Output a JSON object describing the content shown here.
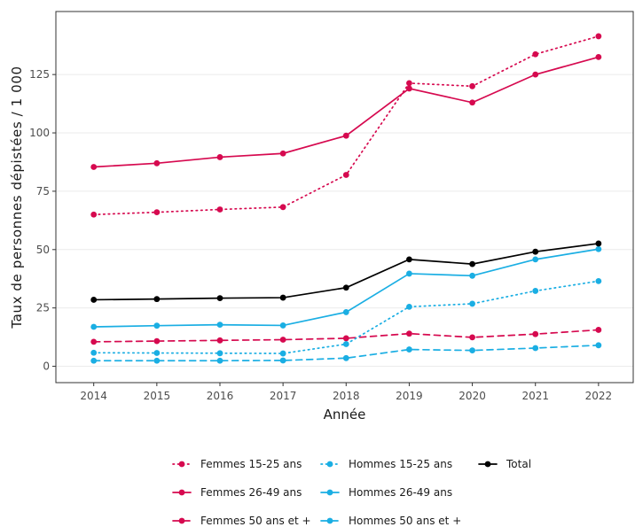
{
  "chart_data": {
    "type": "line",
    "xlabel": "Année",
    "ylabel": "Taux de personnes dépistées / 1 000",
    "x": [
      2014,
      2015,
      2016,
      2017,
      2018,
      2019,
      2020,
      2021,
      2022
    ],
    "xlim": [
      2013.4,
      2022.55
    ],
    "ylim": [
      -7,
      152
    ],
    "yticks": [
      0,
      25,
      50,
      75,
      100,
      125
    ],
    "grid": "horizontal",
    "legend_position": "bottom",
    "series": [
      {
        "name": "Femmes 15-25 ans",
        "color": "#d6094f",
        "linestyle": "dotted",
        "values": [
          65.0,
          66.0,
          67.2,
          68.2,
          82.0,
          121.3,
          120.0,
          133.7,
          141.4
        ]
      },
      {
        "name": "Femmes 26-49 ans",
        "color": "#d6094f",
        "linestyle": "solid",
        "values": [
          85.4,
          87.0,
          89.6,
          91.2,
          98.8,
          119.0,
          113.0,
          125.0,
          132.5
        ]
      },
      {
        "name": "Femmes 50 ans et +",
        "color": "#d6094f",
        "linestyle": "dashed",
        "values": [
          10.5,
          10.8,
          11.1,
          11.4,
          12.0,
          14.0,
          12.4,
          13.8,
          15.6
        ]
      },
      {
        "name": "Hommes 15-25 ans",
        "color": "#1aaee3",
        "linestyle": "dotted",
        "values": [
          5.8,
          5.7,
          5.6,
          5.5,
          9.5,
          25.5,
          26.8,
          32.3,
          36.5
        ]
      },
      {
        "name": "Hommes 26-49 ans",
        "color": "#1aaee3",
        "linestyle": "solid",
        "values": [
          16.9,
          17.4,
          17.8,
          17.5,
          23.2,
          39.7,
          38.8,
          45.8,
          50.2
        ]
      },
      {
        "name": "Hommes 50 ans et +",
        "color": "#1aaee3",
        "linestyle": "dashed",
        "values": [
          2.4,
          2.4,
          2.4,
          2.5,
          3.5,
          7.2,
          6.8,
          7.8,
          9.0
        ]
      },
      {
        "name": "Total",
        "color": "#000000",
        "linestyle": "solid",
        "values": [
          28.5,
          28.8,
          29.2,
          29.4,
          33.7,
          45.8,
          43.8,
          49.1,
          52.6
        ]
      }
    ],
    "legend_order": [
      [
        "Femmes 15-25 ans",
        "Hommes 15-25 ans",
        "Total"
      ],
      [
        "Femmes 26-49 ans",
        "Hommes 26-49 ans"
      ],
      [
        "Femmes 50 ans et +",
        "Hommes 50 ans et +"
      ]
    ]
  }
}
